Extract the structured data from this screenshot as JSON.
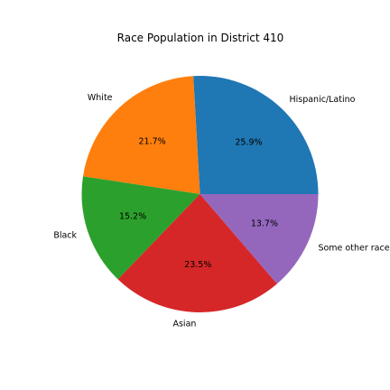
{
  "chart_data": {
    "type": "pie",
    "title": "Race Population in District 410",
    "categories": [
      "Hispanic/Latino",
      "White",
      "Black",
      "Asian",
      "Some other race"
    ],
    "values": [
      25.9,
      21.7,
      15.2,
      23.5,
      13.7
    ],
    "percent_labels": [
      "25.9%",
      "21.7%",
      "15.2%",
      "23.5%",
      "13.7%"
    ],
    "colors": [
      "#1f77b4",
      "#ff7f0e",
      "#2ca02c",
      "#d62728",
      "#9467bd"
    ],
    "start_angle_deg": 0,
    "direction": "counterclockwise",
    "legend": "none"
  }
}
